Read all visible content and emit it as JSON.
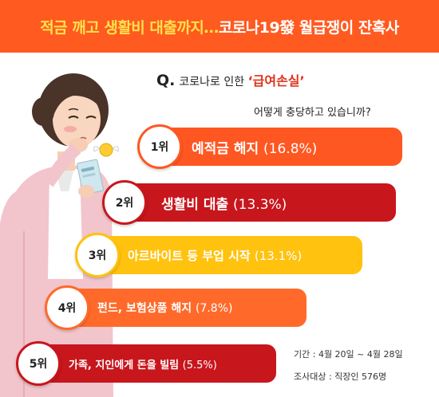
{
  "banner": {
    "part1": "적금 깨고 생활비 대출까지…",
    "part2": " 코로나19發 월급쟁이 잔혹사"
  },
  "question": {
    "q_mark": "Q.",
    "prefix": "코로나로 인한 ",
    "emphasis": "‘급여손실’",
    "line2": "어떻게 충당하고 있습니까?"
  },
  "colors": {
    "banner": "#ff5a1f",
    "rank1": "#ff5722",
    "rank2": "#c8161d",
    "rank3": "#ffc20e",
    "rank4": "#ff6a2a",
    "rank5": "#c8161d"
  },
  "chart_data": {
    "type": "bar",
    "categories": [
      "예적금 해지",
      "생활비 대출",
      "아르바이트 등 부업 시작",
      "펀드, 보험상품 해지",
      "가족, 지인에게 돈을 빌림"
    ],
    "ranks": [
      "1위",
      "2위",
      "3위",
      "4위",
      "5위"
    ],
    "values": [
      16.8,
      13.3,
      13.1,
      7.8,
      5.5
    ],
    "value_labels": [
      "(16.8%)",
      "(13.3%)",
      "(13.1%)",
      "(7.8%)",
      "(5.5%)"
    ]
  },
  "footnote": {
    "period": "기간 : 4월 20일 ~ 4월 28일",
    "target": "조사대상 : 직장인 576명"
  }
}
